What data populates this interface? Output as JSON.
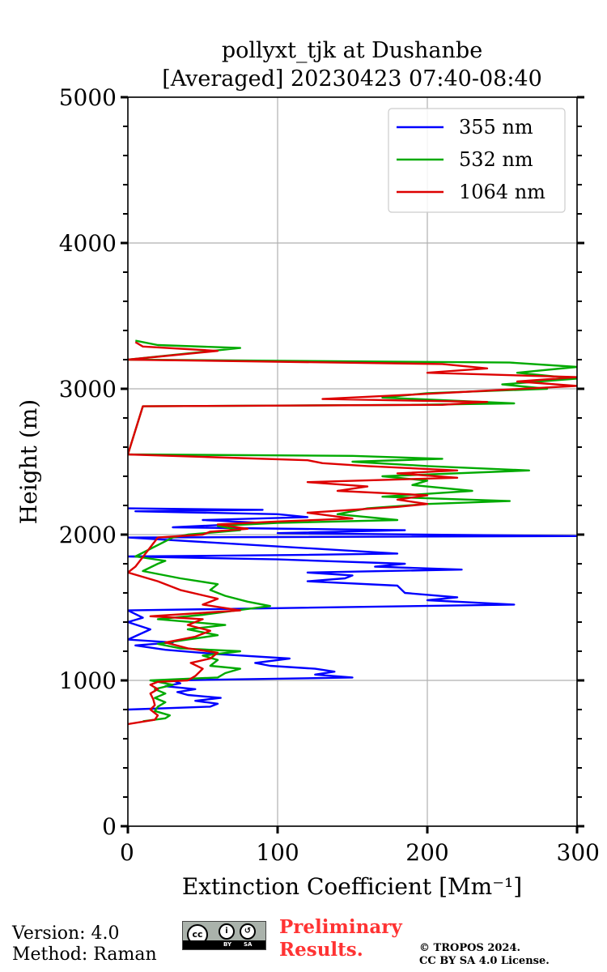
{
  "chart_data": {
    "type": "line",
    "title": [
      "pollyxt_tjk at Dushanbe",
      "[Averaged] 20230423 07:40-08:40"
    ],
    "xlabel": "Extinction Coefficient [Mm⁻¹]",
    "ylabel": "Height (m)",
    "xlim": [
      0,
      300
    ],
    "ylim": [
      0,
      5000
    ],
    "xticks": [
      0,
      100,
      200,
      300
    ],
    "yticks": [
      0,
      1000,
      2000,
      3000,
      4000,
      5000
    ],
    "xtick_labels": [
      "0",
      "100",
      "200",
      "300"
    ],
    "ytick_labels": [
      "0",
      "1000",
      "2000",
      "3000",
      "4000",
      "5000"
    ],
    "grid": true,
    "legend_position": "top-right",
    "series": [
      {
        "name": "355 nm",
        "color": "#0000ff",
        "points": [
          [
            0,
            800
          ],
          [
            55,
            820
          ],
          [
            60,
            840
          ],
          [
            45,
            860
          ],
          [
            62,
            880
          ],
          [
            40,
            900
          ],
          [
            33,
            920
          ],
          [
            45,
            940
          ],
          [
            25,
            960
          ],
          [
            35,
            980
          ],
          [
            30,
            1000
          ],
          [
            150,
            1020
          ],
          [
            125,
            1040
          ],
          [
            138,
            1060
          ],
          [
            125,
            1080
          ],
          [
            95,
            1100
          ],
          [
            85,
            1120
          ],
          [
            108,
            1150
          ],
          [
            60,
            1180
          ],
          [
            25,
            1210
          ],
          [
            5,
            1240
          ],
          [
            30,
            1260
          ],
          [
            0,
            1280
          ],
          [
            15,
            1350
          ],
          [
            0,
            1400
          ],
          [
            10,
            1430
          ],
          [
            0,
            1480
          ],
          [
            258,
            1520
          ],
          [
            200,
            1550
          ],
          [
            220,
            1570
          ],
          [
            185,
            1600
          ],
          [
            180,
            1650
          ],
          [
            120,
            1680
          ],
          [
            145,
            1700
          ],
          [
            150,
            1720
          ],
          [
            120,
            1740
          ],
          [
            223,
            1760
          ],
          [
            165,
            1780
          ],
          [
            185,
            1800
          ],
          [
            100,
            1830
          ],
          [
            0,
            1850
          ],
          [
            110,
            1860
          ],
          [
            180,
            1870
          ],
          [
            0,
            1980
          ],
          [
            300,
            1990
          ],
          [
            100,
            2010
          ],
          [
            185,
            2030
          ],
          [
            30,
            2050
          ],
          [
            90,
            2080
          ],
          [
            50,
            2100
          ],
          [
            120,
            2120
          ],
          [
            100,
            2140
          ],
          [
            5,
            2160
          ],
          [
            90,
            2170
          ],
          [
            0,
            2180
          ]
        ]
      },
      {
        "name": "532 nm",
        "color": "#00aa00",
        "points": [
          [
            10,
            720
          ],
          [
            25,
            740
          ],
          [
            28,
            760
          ],
          [
            18,
            790
          ],
          [
            20,
            820
          ],
          [
            25,
            850
          ],
          [
            18,
            880
          ],
          [
            25,
            910
          ],
          [
            18,
            940
          ],
          [
            30,
            970
          ],
          [
            15,
            1000
          ],
          [
            60,
            1020
          ],
          [
            65,
            1050
          ],
          [
            75,
            1080
          ],
          [
            55,
            1100
          ],
          [
            60,
            1140
          ],
          [
            50,
            1170
          ],
          [
            75,
            1200
          ],
          [
            35,
            1220
          ],
          [
            20,
            1250
          ],
          [
            40,
            1280
          ],
          [
            60,
            1310
          ],
          [
            40,
            1350
          ],
          [
            65,
            1380
          ],
          [
            20,
            1420
          ],
          [
            50,
            1450
          ],
          [
            95,
            1510
          ],
          [
            80,
            1540
          ],
          [
            65,
            1580
          ],
          [
            55,
            1620
          ],
          [
            60,
            1660
          ],
          [
            35,
            1700
          ],
          [
            10,
            1750
          ],
          [
            20,
            1800
          ],
          [
            25,
            1820
          ],
          [
            5,
            1850
          ],
          [
            30,
            1980
          ],
          [
            40,
            2000
          ],
          [
            75,
            2030
          ],
          [
            60,
            2060
          ],
          [
            100,
            2080
          ],
          [
            180,
            2100
          ],
          [
            140,
            2140
          ],
          [
            160,
            2180
          ],
          [
            200,
            2210
          ],
          [
            255,
            2230
          ],
          [
            170,
            2260
          ],
          [
            230,
            2300
          ],
          [
            190,
            2340
          ],
          [
            200,
            2370
          ],
          [
            170,
            2400
          ],
          [
            268,
            2440
          ],
          [
            200,
            2470
          ],
          [
            150,
            2500
          ],
          [
            210,
            2520
          ],
          [
            150,
            2540
          ],
          [
            0,
            2550
          ],
          [
            10,
            2880
          ],
          [
            190,
            2890
          ],
          [
            258,
            2900
          ],
          [
            170,
            2940
          ],
          [
            200,
            2970
          ],
          [
            280,
            3000
          ],
          [
            250,
            3030
          ],
          [
            300,
            3070
          ],
          [
            260,
            3110
          ],
          [
            300,
            3150
          ],
          [
            255,
            3180
          ],
          [
            0,
            3200
          ],
          [
            75,
            3280
          ],
          [
            20,
            3300
          ],
          [
            5,
            3330
          ]
        ]
      },
      {
        "name": "1064 nm",
        "color": "#dd0000",
        "points": [
          [
            0,
            700
          ],
          [
            18,
            730
          ],
          [
            20,
            760
          ],
          [
            15,
            800
          ],
          [
            18,
            830
          ],
          [
            17,
            870
          ],
          [
            15,
            910
          ],
          [
            20,
            940
          ],
          [
            15,
            970
          ],
          [
            20,
            990
          ],
          [
            40,
            1000
          ],
          [
            45,
            1030
          ],
          [
            50,
            1080
          ],
          [
            42,
            1120
          ],
          [
            55,
            1150
          ],
          [
            60,
            1190
          ],
          [
            40,
            1220
          ],
          [
            25,
            1260
          ],
          [
            45,
            1300
          ],
          [
            55,
            1340
          ],
          [
            40,
            1380
          ],
          [
            50,
            1420
          ],
          [
            15,
            1440
          ],
          [
            75,
            1480
          ],
          [
            50,
            1520
          ],
          [
            60,
            1560
          ],
          [
            35,
            1620
          ],
          [
            20,
            1680
          ],
          [
            0,
            1740
          ],
          [
            5,
            1780
          ],
          [
            20,
            1980
          ],
          [
            50,
            2000
          ],
          [
            55,
            2020
          ],
          [
            80,
            2040
          ],
          [
            60,
            2070
          ],
          [
            100,
            2090
          ],
          [
            150,
            2110
          ],
          [
            120,
            2150
          ],
          [
            180,
            2190
          ],
          [
            200,
            2210
          ],
          [
            180,
            2240
          ],
          [
            200,
            2270
          ],
          [
            140,
            2300
          ],
          [
            160,
            2330
          ],
          [
            120,
            2360
          ],
          [
            220,
            2390
          ],
          [
            180,
            2420
          ],
          [
            220,
            2440
          ],
          [
            160,
            2470
          ],
          [
            130,
            2490
          ],
          [
            120,
            2510
          ],
          [
            0,
            2550
          ],
          [
            10,
            2880
          ],
          [
            210,
            2890
          ],
          [
            240,
            2910
          ],
          [
            130,
            2930
          ],
          [
            190,
            2960
          ],
          [
            300,
            3020
          ],
          [
            260,
            3050
          ],
          [
            300,
            3080
          ],
          [
            200,
            3110
          ],
          [
            240,
            3140
          ],
          [
            210,
            3170
          ],
          [
            0,
            3200
          ],
          [
            60,
            3260
          ],
          [
            10,
            3290
          ],
          [
            5,
            3320
          ]
        ]
      }
    ]
  },
  "footer": {
    "version": "Version: 4.0",
    "method": "Method: Raman",
    "license_badge": "cc-by-sa-icon",
    "cc_text": "cc",
    "by_text": "BY",
    "sa_text": "SA",
    "preliminary_line1": "Preliminary",
    "preliminary_line2": "Results.",
    "copyright_line1": "© TROPOS 2024.",
    "copyright_line2": "CC BY SA 4.0 License."
  }
}
